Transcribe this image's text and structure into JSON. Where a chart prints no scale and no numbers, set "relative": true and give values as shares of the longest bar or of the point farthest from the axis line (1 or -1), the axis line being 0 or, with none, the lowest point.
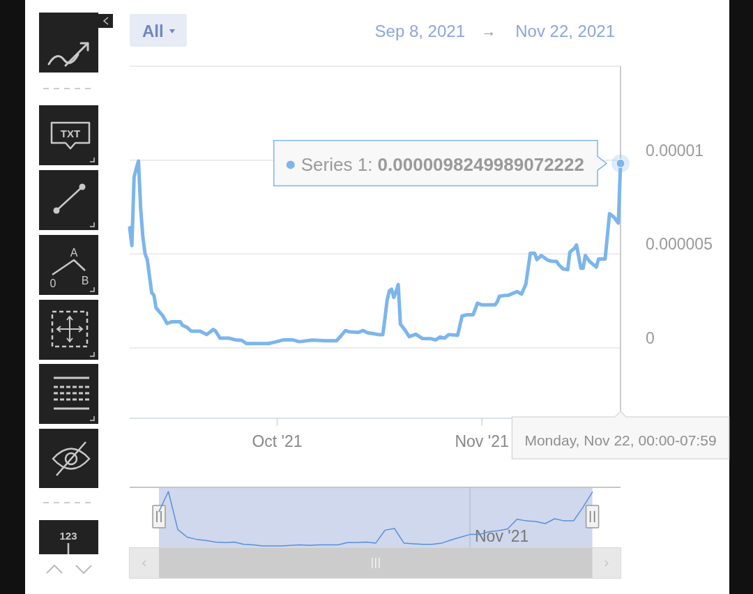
{
  "chart_data": [
    {
      "type": "line",
      "x": [
        "2021-09-08T16:00",
        "2021-09-09T00:00",
        "2021-09-09T08:00",
        "2021-09-09T16:00",
        "2021-09-10T00:00",
        "2021-09-10T08:00",
        "2021-09-10T16:00",
        "2021-09-11T00:00",
        "2021-09-11T08:00",
        "2021-09-12T00:00",
        "2021-09-12T08:00",
        "2021-09-12T16:00",
        "2021-09-13T08:00",
        "2021-09-13T16:00",
        "2021-09-14T08:00",
        "2021-09-15T00:00",
        "2021-09-16T08:00",
        "2021-09-16T16:00",
        "2021-09-17T08:00",
        "2021-09-18T00:00",
        "2021-09-19T08:00",
        "2021-09-20T08:00",
        "2021-09-21T08:00",
        "2021-09-21T16:00",
        "2021-09-22T08:00",
        "2021-09-23T16:00",
        "2021-09-24T16:00",
        "2021-09-25T16:00",
        "2021-09-26T08:00",
        "2021-09-29T16:00",
        "2021-09-30T16:00",
        "2021-10-02T00:00",
        "2021-10-03T08:00",
        "2021-10-04T08:00",
        "2021-10-06T08:00",
        "2021-10-08T08:00",
        "2021-10-10T00:00",
        "2021-10-10T16:00",
        "2021-10-11T08:00",
        "2021-10-12T00:00",
        "2021-10-13T08:00",
        "2021-10-14T00:00",
        "2021-10-14T16:00",
        "2021-10-15T08:00",
        "2021-10-16T08:00",
        "2021-10-17T00:00",
        "2021-10-17T08:00",
        "2021-10-17T16:00",
        "2021-10-18T00:00",
        "2021-10-18T08:00",
        "2021-10-18T16:00",
        "2021-10-19T00:00",
        "2021-10-19T08:00",
        "2021-10-19T16:00",
        "2021-10-20T08:00",
        "2021-10-21T00:00",
        "2021-10-22T00:00",
        "2021-10-23T00:00",
        "2021-10-24T08:00",
        "2021-10-25T00:00",
        "2021-10-25T16:00",
        "2021-10-26T08:00",
        "2021-10-27T00:00",
        "2021-10-28T08:00",
        "2021-10-29T00:00",
        "2021-10-29T16:00",
        "2021-10-30T16:00",
        "2021-10-31T08:00",
        "2021-11-01T00:00",
        "2021-11-03T00:00",
        "2021-11-03T08:00",
        "2021-11-03T16:00",
        "2021-11-04T08:00",
        "2021-11-05T00:00",
        "2021-11-05T16:00",
        "2021-11-06T08:00",
        "2021-11-07T00:00",
        "2021-11-07T16:00",
        "2021-11-08T08:00",
        "2021-11-09T00:00",
        "2021-11-09T08:00",
        "2021-11-10T00:00",
        "2021-11-11T00:00",
        "2021-11-11T16:00",
        "2021-11-12T08:00",
        "2021-11-12T16:00",
        "2021-11-13T08:00",
        "2021-11-14T00:00",
        "2021-11-14T08:00",
        "2021-11-15T00:00",
        "2021-11-15T08:00",
        "2021-11-16T00:00",
        "2021-11-16T08:00",
        "2021-11-16T16:00",
        "2021-11-17T08:00",
        "2021-11-18T08:00",
        "2021-11-18T16:00",
        "2021-11-19T16:00",
        "2021-11-20T08:00",
        "2021-11-21T00:00",
        "2021-11-21T16:00",
        "2021-11-22T00:00"
      ],
      "series": [
        {
          "color": "#7cb5ec",
          "values": [
            6.4e-06,
            5.45e-06,
            9.1e-06,
            9.55e-06,
            9.95e-06,
            7.4e-06,
            5.9e-06,
            5e-06,
            4.7e-06,
            2.94e-06,
            2.81e-06,
            2.13e-06,
            1.85e-06,
            1.72e-06,
            1.3e-06,
            1.39e-06,
            1.39e-06,
            1.2e-06,
            1.1e-06,
            8.9e-07,
            8.9e-07,
            7.1e-07,
            9.8e-07,
            9e-07,
            5.2e-07,
            5.2e-07,
            4.3e-07,
            4e-07,
            2.3e-07,
            2.3e-07,
            3.1e-07,
            4.3e-07,
            4.3e-07,
            3.3e-07,
            4.2e-07,
            3.8e-07,
            3.8e-07,
            6.4e-07,
            9.2e-07,
            8.5e-07,
            8.3e-07,
            9.3e-07,
            8.1e-07,
            7.7e-07,
            7.1e-07,
            7.1e-07,
            1.6e-06,
            2.57e-06,
            3.05e-06,
            3.12e-06,
            2.69e-06,
            3e-06,
            3.37e-06,
            1.26e-06,
            9.6e-07,
            6e-07,
            7.3e-07,
            5e-07,
            4.9e-07,
            4.2e-07,
            5.8e-07,
            5.2e-07,
            7.1e-07,
            6.7e-07,
            1.7e-06,
            1.76e-06,
            1.76e-06,
            2.38e-06,
            2.29e-06,
            2.29e-06,
            2.45e-06,
            2.75e-06,
            2.79e-06,
            2.8e-06,
            2.9e-06,
            3e-06,
            2.87e-06,
            3.4e-06,
            5.04e-06,
            5.04e-06,
            4.7e-06,
            4.92e-06,
            4.67e-06,
            4.61e-06,
            4.6e-06,
            4.42e-06,
            4.2e-06,
            4.17e-06,
            5.1e-06,
            5.3e-06,
            5.48e-06,
            4.24e-06,
            4.24e-06,
            4.92e-06,
            4.6e-06,
            4.3e-06,
            4.73e-06,
            4.73e-06,
            7.15e-06,
            6.96e-06,
            6.65e-06,
            9.8249989072222e-06
          ]
        }
      ],
      "xlim": [
        "2021-09-08T16:00",
        "2021-11-22T00:00"
      ],
      "xticks": [
        {
          "value": "2021-10-01",
          "label": "Oct '21"
        },
        {
          "value": "2021-11-01",
          "label": "Nov '21"
        }
      ],
      "ylim": [
        -3.75e-06,
        1.5e-05
      ],
      "yticks": [
        0,
        {
          "value": 5e-06,
          "label": "0.000005"
        },
        {
          "value": 1e-05,
          "label": "0.00001"
        },
        {
          "value": 1.5e-05,
          "label": null
        }
      ],
      "grid": "y",
      "annotations": [
        "TXT",
        "A",
        "0",
        "B",
        "123",
        "All",
        "Sep 8, 2021",
        "→",
        "Nov 22, 2021",
        "Monday, Nov 22, 00:00-07:59",
        {
          "text": "Series 1: 0.0000098249989072222",
          "x": "2021-11-22T00:00",
          "y": 9.8249989072222e-06
        }
      ]
    },
    {
      "type": "line",
      "relative": true,
      "color": "#5b8ed8",
      "categories": [
        null,
        null,
        null,
        null,
        null,
        null,
        null,
        null,
        null,
        null,
        null,
        null,
        null,
        null,
        null,
        null,
        null,
        null,
        null,
        null,
        null,
        null,
        null,
        null,
        null,
        null,
        null,
        null,
        null,
        null,
        null,
        null,
        null,
        null,
        null,
        null,
        null,
        null,
        null,
        null,
        null,
        null,
        null,
        null,
        null,
        null,
        null
      ],
      "values": [
        0.63,
        1,
        0.3,
        0.16,
        0.12,
        0.1,
        0.07,
        0.06,
        0.07,
        0.03,
        0.02,
        0,
        0,
        0,
        0.01,
        0.02,
        0.01,
        0.02,
        0.02,
        0.02,
        0.06,
        0.06,
        0.07,
        0.05,
        0.29,
        0.32,
        0.05,
        0.04,
        0.03,
        0.03,
        0.05,
        0.11,
        0.16,
        0.21,
        0.21,
        0.26,
        0.28,
        0.31,
        0.49,
        0.46,
        0.45,
        0.41,
        0.5,
        0.46,
        0.46,
        0.71,
        0.99
      ],
      "annotations": [
        "Nov '21"
      ]
    }
  ]
}
